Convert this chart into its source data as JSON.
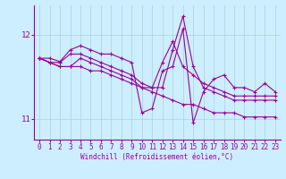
{
  "xlabel": "Windchill (Refroidissement éolien,°C)",
  "background_color": "#cceeff",
  "line_color": "#990099",
  "xlim": [
    -0.5,
    23.5
  ],
  "ylim": [
    10.75,
    12.35
  ],
  "yticks": [
    11,
    12
  ],
  "xticks": [
    0,
    1,
    2,
    3,
    4,
    5,
    6,
    7,
    8,
    9,
    10,
    11,
    12,
    13,
    14,
    15,
    16,
    17,
    18,
    19,
    20,
    21,
    22,
    23
  ],
  "series": [
    [
      11.72,
      11.72,
      11.68,
      11.82,
      11.87,
      11.82,
      11.77,
      11.77,
      11.72,
      11.67,
      11.07,
      11.12,
      11.57,
      11.62,
      12.07,
      10.95,
      11.32,
      11.47,
      11.52,
      11.37,
      11.37,
      11.32,
      11.42,
      11.32
    ],
    [
      11.72,
      11.67,
      11.62,
      11.62,
      11.62,
      11.57,
      11.57,
      11.52,
      11.47,
      11.42,
      11.37,
      11.32,
      11.27,
      11.22,
      11.17,
      11.17,
      11.12,
      11.07,
      11.07,
      11.07,
      11.02,
      11.02,
      11.02,
      11.02
    ],
    [
      11.72,
      11.67,
      11.67,
      11.77,
      11.77,
      11.72,
      11.67,
      11.62,
      11.57,
      11.52,
      11.42,
      11.37,
      11.37,
      11.82,
      12.22,
      11.62,
      11.37,
      11.32,
      11.27,
      11.22,
      11.22,
      11.22,
      11.22,
      11.22
    ],
    [
      11.72,
      11.67,
      11.62,
      11.62,
      11.72,
      11.67,
      11.62,
      11.57,
      11.52,
      11.47,
      11.37,
      11.37,
      11.67,
      11.92,
      11.62,
      11.52,
      11.42,
      11.37,
      11.32,
      11.27,
      11.27,
      11.27,
      11.27,
      11.27
    ]
  ],
  "grid_color": "#aad4d4",
  "tick_fontsize": 5.5,
  "xlabel_fontsize": 5.5,
  "ytick_fontsize": 6.5,
  "linewidth": 0.8,
  "markersize": 2.5
}
